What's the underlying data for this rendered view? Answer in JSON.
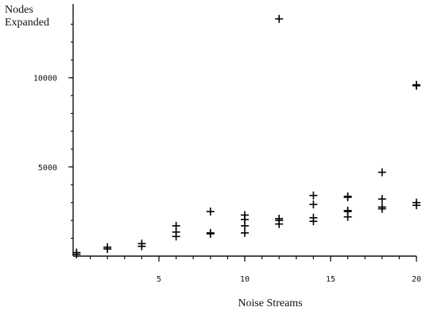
{
  "chart_data": {
    "type": "scatter",
    "title": "",
    "xlabel": "Noise Streams",
    "ylabel": "Nodes\nExpanded",
    "xlim": [
      0,
      20
    ],
    "ylim": [
      0,
      14000
    ],
    "x_ticks": [
      5,
      10,
      15,
      20
    ],
    "y_ticks": [
      5000,
      10000
    ],
    "x_minor_ticks": [
      1,
      2,
      3,
      4,
      5,
      6,
      7,
      8,
      9,
      10,
      11,
      12,
      13,
      14,
      15,
      16,
      17,
      18,
      19,
      20
    ],
    "y_minor_ticks": [
      1000,
      2000,
      3000,
      4000,
      5000,
      6000,
      7000,
      8000,
      9000,
      10000,
      11000,
      12000,
      13000
    ],
    "grid": false,
    "points": [
      {
        "x": 0.2,
        "y": 200
      },
      {
        "x": 0.2,
        "y": 100
      },
      {
        "x": 2,
        "y": 500
      },
      {
        "x": 2,
        "y": 400
      },
      {
        "x": 4,
        "y": 700
      },
      {
        "x": 4,
        "y": 550
      },
      {
        "x": 6,
        "y": 1700
      },
      {
        "x": 6,
        "y": 1350
      },
      {
        "x": 6,
        "y": 1100
      },
      {
        "x": 8,
        "y": 2500
      },
      {
        "x": 8,
        "y": 1300
      },
      {
        "x": 8,
        "y": 1250
      },
      {
        "x": 10,
        "y": 2300
      },
      {
        "x": 10,
        "y": 2050
      },
      {
        "x": 10,
        "y": 1700
      },
      {
        "x": 10,
        "y": 1300
      },
      {
        "x": 12,
        "y": 13300
      },
      {
        "x": 12,
        "y": 2100
      },
      {
        "x": 12,
        "y": 2000
      },
      {
        "x": 12,
        "y": 1800
      },
      {
        "x": 14,
        "y": 3400
      },
      {
        "x": 14,
        "y": 2900
      },
      {
        "x": 14,
        "y": 2150
      },
      {
        "x": 14,
        "y": 1950
      },
      {
        "x": 16,
        "y": 3350
      },
      {
        "x": 16,
        "y": 3300
      },
      {
        "x": 16,
        "y": 2550
      },
      {
        "x": 16,
        "y": 2500
      },
      {
        "x": 16,
        "y": 2200
      },
      {
        "x": 18,
        "y": 4700
      },
      {
        "x": 18,
        "y": 3200
      },
      {
        "x": 18,
        "y": 2750
      },
      {
        "x": 18,
        "y": 2650
      },
      {
        "x": 20,
        "y": 9600
      },
      {
        "x": 20,
        "y": 9550
      },
      {
        "x": 20,
        "y": 3000
      },
      {
        "x": 20,
        "y": 2850
      }
    ]
  }
}
